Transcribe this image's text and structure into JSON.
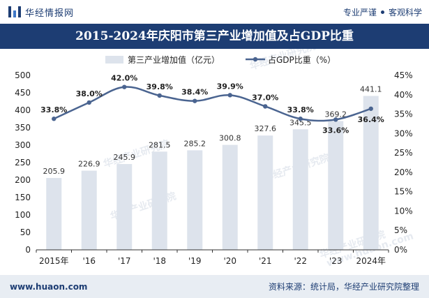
{
  "header": {
    "brand": "华经情报网",
    "tagline_a": "专业严谨",
    "tagline_b": "客观科学",
    "title": "2015-2024年庆阳市第三产业增加值及占GDP比重"
  },
  "footer": {
    "site": "www.huaon.com",
    "source": "资料来源：统计局，华经产业研究院整理"
  },
  "watermark": {
    "text": "华经产业研究院",
    "url": "www.huaon.com"
  },
  "colors": {
    "bar": "#dde3ec",
    "line": "#4a6490",
    "title_bg": "#1d3d73"
  },
  "chart_data": {
    "type": "bar",
    "categories": [
      "2015年",
      "'16",
      "'17",
      "'18",
      "'19",
      "'20",
      "'21",
      "'22",
      "'23",
      "2024年"
    ],
    "series": [
      {
        "name": "第三产业增加值（亿元）",
        "type": "bar",
        "axis": "left",
        "values": [
          205.9,
          226.9,
          245.9,
          281.5,
          285.2,
          300.8,
          327.6,
          345.5,
          369.2,
          441.1
        ],
        "labels": [
          "205.9",
          "226.9",
          "245.9",
          "281.5",
          "285.2",
          "300.8",
          "327.6",
          "345.5",
          "369.2",
          "441.1"
        ]
      },
      {
        "name": "占GDP比重（%）",
        "type": "line",
        "axis": "right",
        "values": [
          33.8,
          38.0,
          42.0,
          39.8,
          38.4,
          39.9,
          37.0,
          33.8,
          33.6,
          36.4
        ],
        "labels": [
          "33.8%",
          "38.0%",
          "42.0%",
          "39.8%",
          "38.4%",
          "39.9%",
          "37.0%",
          "33.8%",
          "33.6%",
          "36.4%"
        ]
      }
    ],
    "y_left": {
      "min": 0,
      "max": 500,
      "step": 50,
      "ticks": [
        "0",
        "50",
        "100",
        "150",
        "200",
        "250",
        "300",
        "350",
        "400",
        "450",
        "500"
      ]
    },
    "y_right": {
      "min": 0,
      "max": 45,
      "step": 5,
      "ticks": [
        "0%",
        "5%",
        "10%",
        "15%",
        "20%",
        "25%",
        "30%",
        "35%",
        "40%",
        "45%"
      ]
    },
    "legend_position": "top-center",
    "grid": false
  }
}
